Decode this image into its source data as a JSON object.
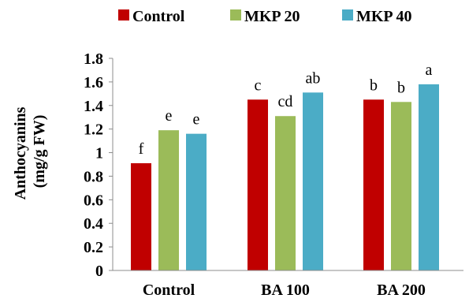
{
  "chart_data": {
    "type": "bar",
    "title": "",
    "xlabel": "",
    "ylabel_line1": "Anthocyanins",
    "ylabel_line2": "(mg/g FW)",
    "ylim": [
      0,
      1.8
    ],
    "yticks": [
      "0",
      "0.2",
      "0.4",
      "0.6",
      "0.8",
      "1",
      "1.2",
      "1.4",
      "1.6",
      "1.8"
    ],
    "categories": [
      "Control",
      "BA 100",
      "BA 200"
    ],
    "legend_position": "top",
    "grid": false,
    "series": [
      {
        "name": "Control",
        "color": "#C00000",
        "values": [
          0.91,
          1.45,
          1.45
        ],
        "labels": [
          "f",
          "c",
          "b"
        ]
      },
      {
        "name": "MKP 20",
        "color": "#9BBB59",
        "values": [
          1.19,
          1.31,
          1.43
        ],
        "labels": [
          "e",
          "cd",
          "b"
        ]
      },
      {
        "name": "MKP 40",
        "color": "#4BACC6",
        "values": [
          1.16,
          1.51,
          1.58
        ],
        "labels": [
          "e",
          "ab",
          "a"
        ]
      }
    ]
  }
}
